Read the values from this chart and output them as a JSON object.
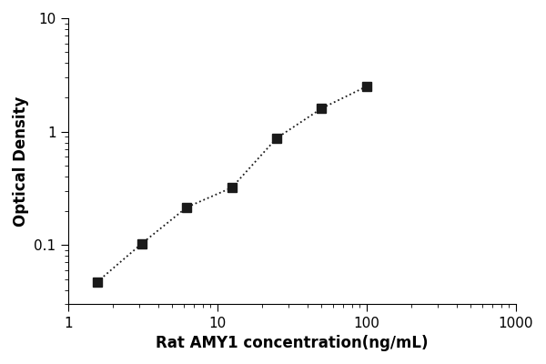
{
  "x": [
    1.5625,
    3.125,
    6.25,
    12.5,
    25,
    50,
    100
  ],
  "y": [
    0.047,
    0.103,
    0.215,
    0.32,
    0.875,
    1.6,
    2.5
  ],
  "xlabel": "Rat AMY1 concentration(ng/mL)",
  "ylabel": "Optical Density",
  "xlim": [
    1,
    1000
  ],
  "ylim": [
    0.03,
    10
  ],
  "xticks": [
    1,
    10,
    100,
    1000
  ],
  "yticks": [
    0.1,
    1,
    10
  ],
  "marker": "s",
  "marker_color": "#1a1a1a",
  "marker_size": 7,
  "line_style": ":",
  "line_color": "#1a1a1a",
  "line_width": 1.3,
  "background_color": "#ffffff",
  "xlabel_fontsize": 12,
  "ylabel_fontsize": 12,
  "tick_fontsize": 11
}
